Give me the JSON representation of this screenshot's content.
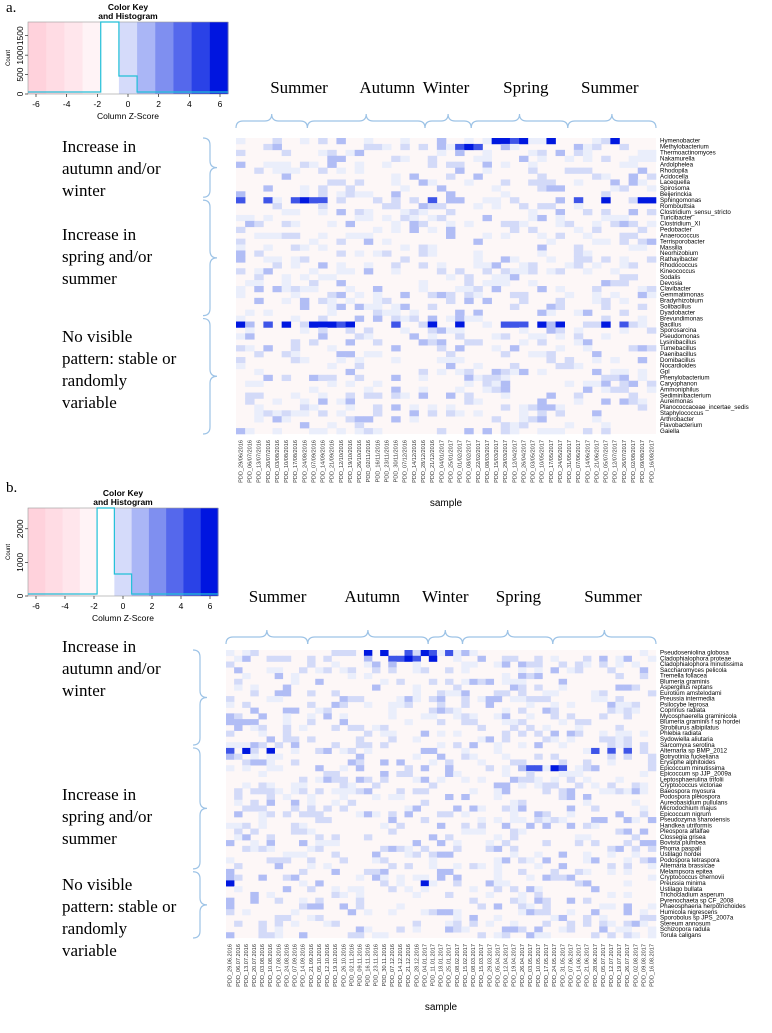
{
  "chart_data": [
    {
      "type": "heatmap",
      "panel_label": "a.",
      "key": {
        "title_line1": "Color Key",
        "title_line2": "and Histogram",
        "ylabel": "Count",
        "yticks": [
          "0",
          "500",
          "1000",
          "1500"
        ],
        "xlabel": "Column Z-Score",
        "xticks": [
          "-6",
          "-4",
          "-2",
          "0",
          "2",
          "4",
          "6"
        ]
      },
      "seasons": [
        "Summer",
        "Autumn",
        "Winter",
        "Spring",
        "Summer"
      ],
      "groups": [
        {
          "lines": [
            "Increase in",
            "autumn and/or",
            "winter"
          ]
        },
        {
          "lines": [
            "Increase in",
            "spring and/or",
            "summer"
          ]
        },
        {
          "lines": [
            "No visible",
            "pattern: stable or",
            "randomly",
            "variable"
          ]
        }
      ],
      "rows": [
        "Hymenobacter",
        "Methylobacterium",
        "Thermoactinomyces",
        "Nakamurella",
        "Ardolphelea",
        "Rhodopila",
        "Acidocella",
        "Lacequella",
        "Spirosoma",
        "Beijerinckia",
        "Sphingomonas",
        "Rombouttsia",
        "Clostridium_sensu_stricto",
        "Turicibacter",
        "Clostridium_XI",
        "Pedobacter",
        "Anaerococcus",
        "Terrisporobacter",
        "Massilia",
        "Neorhizobium",
        "Rathayibacter",
        "Rhodococcus",
        "Kineococcus",
        "Sodalis",
        "Devosia",
        "Clavibacter",
        "Gemmatimonas",
        "Bradyrhizobium",
        "Solibacillus",
        "Dyadobacter",
        "Brevundimonas",
        "Bacillus",
        "Sporosarcina",
        "Pseudomonas",
        "Lysinibacillus",
        "Tumebacillus",
        "Paenibacillus",
        "Domibacillus",
        "Nocardioides",
        "Gpl",
        "Phenylobacterium",
        "Caryophanon",
        "Ammoniphilus",
        "Sediminibacterium",
        "Aureimonas",
        "Planococcaceae_incertae_sedis",
        "Staphylococcus",
        "Arthrobacter",
        "Flavobacterium",
        "Gaiella"
      ],
      "columns": [
        "PDD_29/06/2016",
        "PDD_06/07/2016",
        "PDD_13/07/2016",
        "PDD_20/07/2016",
        "PDD_03/08/2016",
        "PDD_10/08/2016",
        "PDD_17/08/2016",
        "PDD_24/08/2016",
        "PDD_07/09/2016",
        "PDD_14/09/2016",
        "PDD_21/09/2016",
        "PDD_12/10/2016",
        "PDD_19/10/2016",
        "PDD_26/10/2016",
        "PDD_02/11/2016",
        "PDD_16/11/2016",
        "PDD_23/11/2016",
        "PDD_30/11/2016",
        "PDD_07/12/2016",
        "PDD_14/12/2016",
        "PDD_28/12/2016",
        "PDD_21/12/2016",
        "PDD_04/01/2017",
        "PDD_25/01/2017",
        "PDD_01/02/2017",
        "PDD_08/02/2017",
        "PDD_22/02/2017",
        "PDD_08/03/2017",
        "PDD_15/03/2017",
        "PDD_29/03/2017",
        "PDD_12/04/2017",
        "PDD_26/04/2017",
        "PDD_03/05/2017",
        "PDD_10/05/2017",
        "PDD_17/05/2017",
        "PDD_24/05/2017",
        "PDD_31/05/2017",
        "PDD_07/06/2017",
        "PDD_14/06/2017",
        "PDD_21/06/2017",
        "PDD_05/07/2017",
        "PDD_12/07/2017",
        "PDD_26/07/2017",
        "PDD_02/08/2017",
        "PDD_09/08/2017",
        "PDD_16/08/2017"
      ],
      "xlabel": "sample"
    },
    {
      "type": "heatmap",
      "panel_label": "b.",
      "key": {
        "title_line1": "Color Key",
        "title_line2": "and Histogram",
        "ylabel": "Count",
        "yticks": [
          "0",
          "1000",
          "2000"
        ],
        "xlabel": "Column Z-Score",
        "xticks": [
          "-6",
          "-4",
          "-2",
          "0",
          "2",
          "4",
          "6"
        ]
      },
      "seasons": [
        "Summer",
        "Autumn",
        "Winter",
        "Spring",
        "Summer"
      ],
      "groups": [
        {
          "lines": [
            "Increase in",
            "autumn and/or",
            "winter"
          ]
        },
        {
          "lines": [
            "Increase in",
            "spring and/or",
            "summer"
          ]
        },
        {
          "lines": [
            "No visible",
            "pattern: stable or",
            "randomly",
            "variable"
          ]
        }
      ],
      "rows": [
        "Pseudoseniolina globosa",
        "Cladophialophora proteae",
        "Cladophialophora minutissima",
        "Saccharomyces pelicola",
        "Tremella foliacea",
        "Blumeria graminis",
        "Aspergillus reptans",
        "Eurotium amstelodami",
        "Preussia intermedia",
        "Psilocybe leprosa",
        "Coprinus radiata",
        "Mycosphaerella graminicola",
        "Blumeria graminis f sp hordei",
        "Strobilurus albipilatus",
        "Phlebia radiata",
        "Sydowiella aliutaria",
        "Sarcomyxa serotina",
        "Alternaria sp BMP_2012",
        "Botryotinia fuckeliana",
        "Erysiphe alphitoides",
        "Epicoccum minutissima",
        "Epicoccum sp JJP_2009a",
        "Leptosphaerulina trifolii",
        "Cryptococcus victoriae",
        "Baeospora myosura",
        "Podospora pleiospora",
        "Aureobasidium pullulans",
        "Microdochium majus",
        "Epicoccum nigrum",
        "Pseudozyma shanxiensis",
        "Handkea utriformis",
        "Pleospora alfalfae",
        "Clossegia grisea",
        "Bovista plumbea",
        "Phoma paspali",
        "Ustilago hordei",
        "Podospora tetraspora",
        "Alternaria brassicae",
        "Melampsora epitea",
        "Cryptococcus chernovii",
        "Preussia minima",
        "Ustilago bullata",
        "Trichocladium asperum",
        "Pyrenochaeta sp CF_2008",
        "Phaeosphaeria herpotrichoides",
        "Humicola nigrescens",
        "Sporobolus sp JPS_2007a",
        "Stereum annosum",
        "Schizopora radula",
        "Torula caligans"
      ],
      "columns": [
        "PDD_29.06.2016",
        "PDD_06.07.2016",
        "PDD_13.07.2016",
        "PDD_20.07.2016",
        "PDD_03.08.2016",
        "PDD_10.08.2016",
        "PDD_17.08.2016",
        "PDD_24.08.2016",
        "PDD_07.09.2016",
        "PDD_14.09.2016",
        "PDD_21.09.2016",
        "PDD_05.10.2016",
        "PDD_12.10.2016",
        "PDD_19.10.2016",
        "PDD_26.10.2016",
        "PDD_02.11.2016",
        "PDD_09.11.2016",
        "PDD_16.11.2016",
        "PDD_23.11.2016",
        "PDD_30.11.2016",
        "PDD_07.12.2016",
        "PDD_14.12.2016",
        "PDD_21.12.2016",
        "PDD_28.12.2016",
        "PDD_04.01.2017",
        "PDD_11.01.2017",
        "PDD_18.01.2017",
        "PDD_25.01.2017",
        "PDD_08.02.2017",
        "PDD_15.02.2017",
        "PDD_08.03.2017",
        "PDD_15.03.2017",
        "PDD_29.03.2017",
        "PDD_05.04.2017",
        "PDD_12.04.2017",
        "PDD_19.04.2017",
        "PDD_26.04.2017",
        "PDD_03.05.2017",
        "PDD_10.05.2017",
        "PDD_17.05.2017",
        "PDD_24.05.2017",
        "PDD_31.05.2017",
        "PDD_07.06.2017",
        "PDD_14.06.2017",
        "PDD_21.06.2017",
        "PDD_28.06.2017",
        "PDD_05.07.2017",
        "PDD_12.07.2017",
        "PDD_19.07.2017",
        "PDD_26.07.2017",
        "PDD_02.08.2017",
        "PDD_09.08.2017",
        "PDD_16.08.2017"
      ],
      "xlabel": "sample"
    }
  ]
}
